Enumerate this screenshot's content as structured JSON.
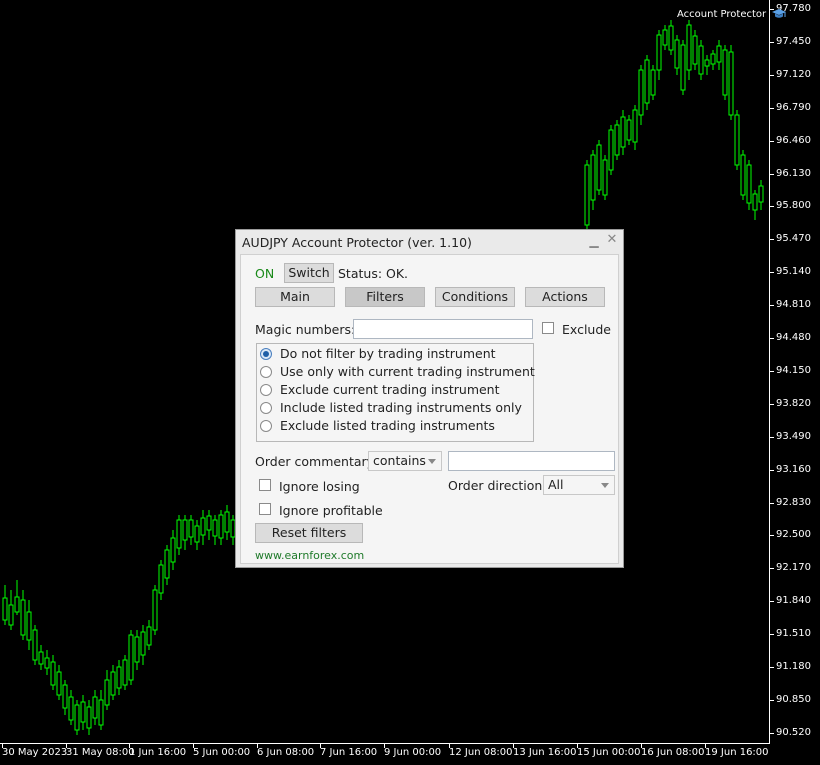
{
  "chart": {
    "price_labels": [
      "97.780",
      "97.450",
      "97.120",
      "96.790",
      "96.460",
      "96.130",
      "95.800",
      "95.470",
      "95.140",
      "94.810",
      "94.480",
      "94.150",
      "93.820",
      "93.490",
      "93.160",
      "92.830",
      "92.500",
      "92.170",
      "91.840",
      "91.510",
      "91.180",
      "90.850",
      "90.520"
    ],
    "time_labels": [
      "30 May 2023",
      "31 May 08:00",
      "1 Jun 16:00",
      "5 Jun 00:00",
      "6 Jun 08:00",
      "7 Jun 16:00",
      "9 Jun 00:00",
      "12 Jun 08:00",
      "13 Jun 16:00",
      "15 Jun 00:00",
      "16 Jun 08:00",
      "19 Jun 16:00"
    ],
    "ea_name": "Account Protector",
    "candle_color": "#00ff00"
  },
  "panel": {
    "title": "AUDJPY Account Protector (ver. 1.10)",
    "min_glyph": "▁",
    "close_glyph": "✕",
    "status_on": "ON",
    "switch_label": "Switch",
    "status_text": "Status: OK.",
    "tabs": [
      {
        "label": "Main",
        "active": false
      },
      {
        "label": "Filters",
        "active": true
      },
      {
        "label": "Conditions",
        "active": false
      },
      {
        "label": "Actions",
        "active": false
      }
    ],
    "magic_label": "Magic numbers:",
    "magic_value": "",
    "exclude_label": "Exclude",
    "exclude_checked": false,
    "radio_options": [
      {
        "label": "Do not filter by trading instrument",
        "checked": true
      },
      {
        "label": "Use only with current trading instrument",
        "checked": false
      },
      {
        "label": "Exclude current trading instrument",
        "checked": false
      },
      {
        "label": "Include listed trading instruments only",
        "checked": false
      },
      {
        "label": "Exclude listed trading instruments",
        "checked": false
      }
    ],
    "commentary_label": "Order commentary",
    "commentary_mode": "contains",
    "commentary_value": "",
    "ignore_losing_label": "Ignore losing",
    "order_direction_label": "Order direction",
    "order_direction_value": "All",
    "ignore_profitable_label": "Ignore profitable",
    "reset_label": "Reset filters",
    "website": "www.earnforex.com"
  }
}
